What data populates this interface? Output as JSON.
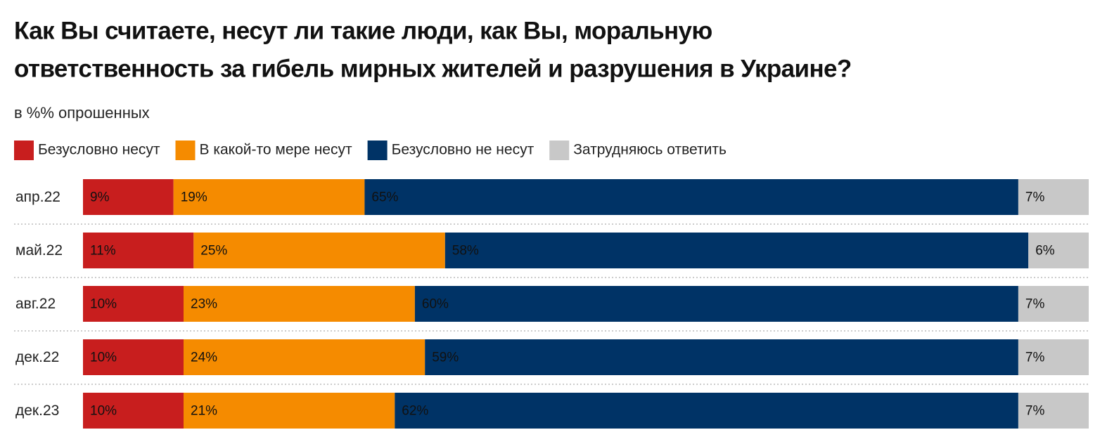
{
  "chart_data": {
    "type": "stacked-bar-horizontal",
    "title_lines": [
      "Как Вы считаете, несут ли такие люди, как Вы, моральную",
      "ответственность за гибель мирных жителей и разрушения в Украине?"
    ],
    "subtitle": "в %% опрошенных",
    "categories": [
      "апр.22",
      "май.22",
      "авг.22",
      "дек.22",
      "дек.23"
    ],
    "xlim": [
      0,
      100
    ],
    "series": [
      {
        "name": "Безусловно несут",
        "color": "#c81e1e",
        "values": [
          9,
          11,
          10,
          10,
          10
        ],
        "value_labels": [
          "9%",
          "11%",
          "10%",
          "10%",
          "10%"
        ]
      },
      {
        "name": "В какой-то мере несут",
        "color": "#f58b00",
        "values": [
          19,
          25,
          23,
          24,
          21
        ],
        "value_labels": [
          "19%",
          "25%",
          "23%",
          "24%",
          "21%"
        ]
      },
      {
        "name": "Безусловно не несут",
        "color": "#003366",
        "values": [
          65,
          58,
          60,
          59,
          62
        ],
        "value_labels": [
          "65%",
          "58%",
          "60%",
          "59%",
          "62%"
        ]
      },
      {
        "name": "Затрудняюсь ответить",
        "color": "#c8c8c8",
        "values": [
          7,
          6,
          7,
          7,
          7
        ],
        "value_labels": [
          "7%",
          "6%",
          "7%",
          "7%",
          "7%"
        ]
      }
    ]
  }
}
